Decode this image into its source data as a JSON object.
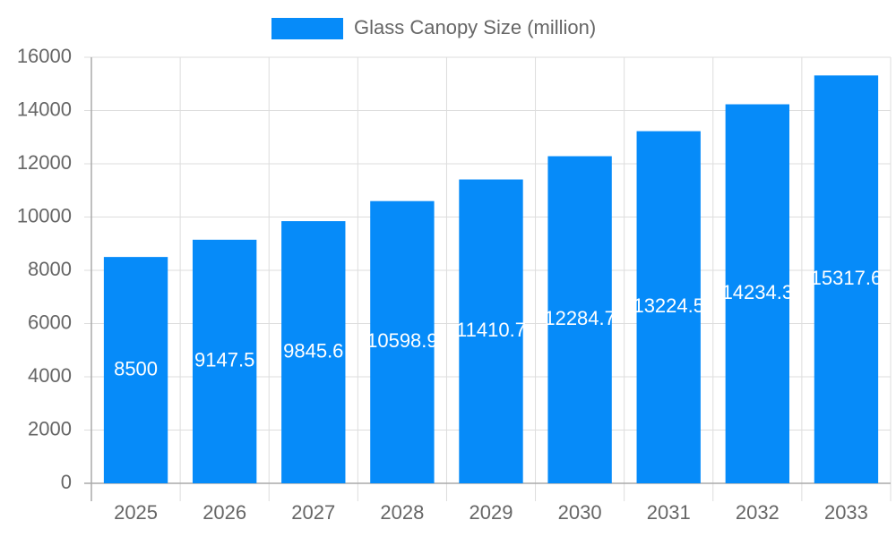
{
  "chart_data": {
    "type": "bar",
    "legend": "Glass Canopy Size (million)",
    "categories": [
      "2025",
      "2026",
      "2027",
      "2028",
      "2029",
      "2030",
      "2031",
      "2032",
      "2033"
    ],
    "series": [
      {
        "name": "Glass Canopy Size (million)",
        "color": "#068bf9",
        "values": [
          8500,
          9147.5,
          9845.6,
          10598.9,
          11410.7,
          12284.7,
          13224.5,
          14234.3,
          15317.6
        ]
      }
    ],
    "ylim": [
      0,
      16000
    ],
    "yticks": [
      0,
      2000,
      4000,
      6000,
      8000,
      10000,
      12000,
      14000,
      16000
    ],
    "grid": true
  }
}
